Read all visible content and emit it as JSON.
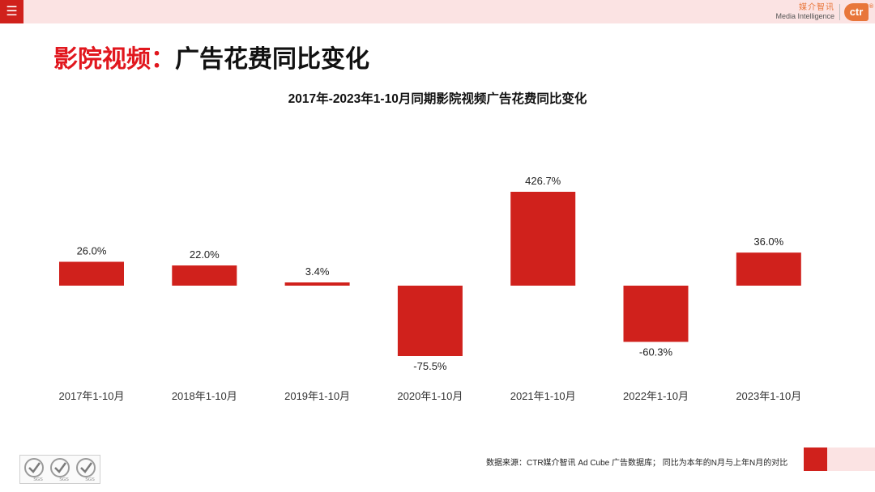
{
  "header": {
    "menu_icon": "hamburger-icon",
    "brand_cn": "媒介智讯",
    "brand_en": "Media Intelligence",
    "brand_logo": "ctr",
    "brand_reg": "®"
  },
  "page": {
    "title_red": "影院视频：",
    "title_black": "广告花费同比变化"
  },
  "chart_data": {
    "type": "bar",
    "title": "2017年-2023年1-10月同期影院视频广告花费同比变化",
    "categories": [
      "2017年1-10月",
      "2018年1-10月",
      "2019年1-10月",
      "2020年1-10月",
      "2021年1-10月",
      "2022年1-10月",
      "2023年1-10月"
    ],
    "values": [
      26.0,
      22.0,
      3.4,
      -75.5,
      426.7,
      -60.3,
      36.0
    ],
    "labels": [
      "26.0%",
      "22.0%",
      "3.4%",
      "-75.5%",
      "426.7%",
      "-60.3%",
      "36.0%"
    ],
    "unit": "%",
    "xlabel": "",
    "ylabel": "",
    "grid": false,
    "bar_color": "#d0211c"
  },
  "footer": {
    "source_note": "数据来源：CTR媒介智讯 Ad Cube 广告数据库；  同比为本年的N月与上年N月的对比",
    "cert_icon": "sgs-certification-icon",
    "cert_labels": [
      "SGS",
      "SGS",
      "SGS"
    ]
  }
}
